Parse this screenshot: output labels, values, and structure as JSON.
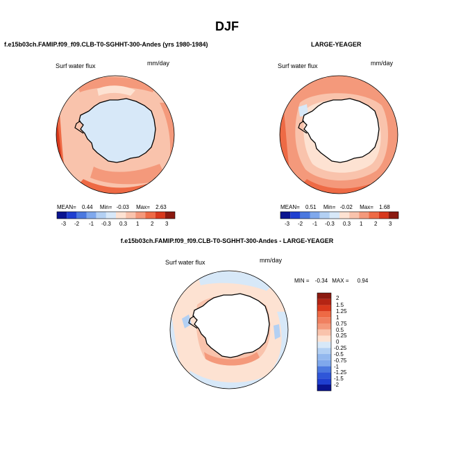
{
  "main_title": "DJF",
  "colors": {
    "dark_red": "#8b1a10",
    "red": "#d8381c",
    "orange_red": "#ee6a45",
    "salmon": "#f4997b",
    "light_salmon": "#f9c3ac",
    "pale": "#fde2d2",
    "pale_blue": "#d7e8f8",
    "light_blue": "#b3d0f3",
    "mid_blue": "#7fa8ec",
    "blue": "#4b78df",
    "deep_blue": "#1f3fd0",
    "navy": "#0a1490",
    "antarctica_fill": "#ffffff",
    "coast": "#000000"
  },
  "panels": [
    {
      "title": "f.e15b03ch.FAMIP.f09_f09.CLB-T0-SGHHT-300-Andes (yrs 1980-1984)",
      "field_label": "Surf water flux",
      "units": "mm/day",
      "stats": {
        "mean_label": "MEAN=",
        "mean": "0.44",
        "min_label": "Min=",
        "min": "-0.03",
        "max_label": "Max=",
        "max": "2.63"
      },
      "colorbar_ticks": [
        "-3",
        "-2",
        "-1",
        "-0.3",
        "0.3",
        "1",
        "2",
        "3"
      ]
    },
    {
      "title": "LARGE-YEAGER",
      "field_label": "Surf water flux",
      "units": "mm/day",
      "stats": {
        "mean_label": "MEAN=",
        "mean": "0.51",
        "min_label": "Min=",
        "min": "-0.02",
        "max_label": "Max=",
        "max": "1.68"
      },
      "colorbar_ticks": [
        "-3",
        "-2",
        "-1",
        "-0.3",
        "0.3",
        "1",
        "2",
        "3"
      ]
    },
    {
      "title": "f.e15b03ch.FAMIP.f09_f09.CLB-T0-SGHHT-300-Andes - LARGE-YEAGER",
      "field_label": "Surf water flux",
      "units": "mm/day",
      "stats_line": {
        "min_label": "MIN =",
        "min": "-0.34",
        "max_label": "MAX =",
        "max": "0.94"
      },
      "colorbar_ticks": [
        "2",
        "1.5",
        "1.25",
        "1",
        "0.75",
        "0.5",
        "0.25",
        "0",
        "-0.25",
        "-0.5",
        "-0.75",
        "-1",
        "-1.25",
        "-1.5",
        "-2"
      ]
    }
  ]
}
